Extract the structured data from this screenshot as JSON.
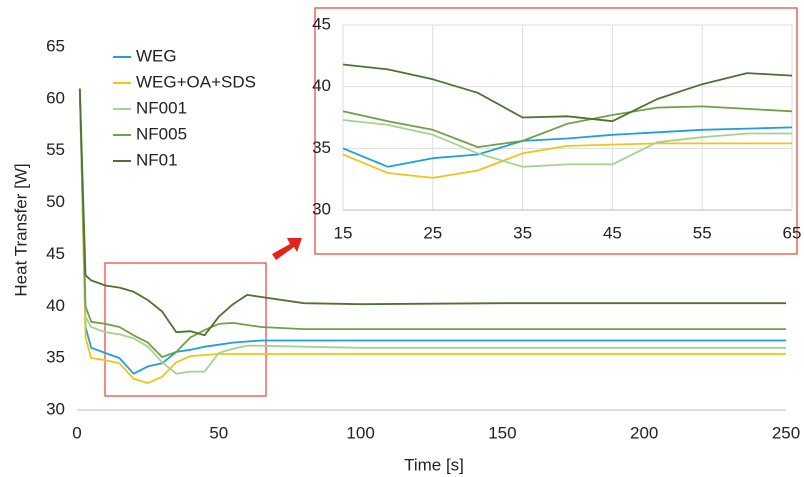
{
  "chart_data": [
    {
      "type": "line",
      "x_label": "Time [s]",
      "y_label": "Heat Transfer [W]",
      "x": [
        1,
        3,
        5,
        10,
        15,
        20,
        25,
        30,
        35,
        40,
        45,
        50,
        55,
        60,
        65,
        80,
        100,
        150,
        200,
        250
      ],
      "xlim": [
        0,
        250
      ],
      "xticks": [
        0,
        50,
        100,
        150,
        200,
        250
      ],
      "ylim": [
        30,
        65
      ],
      "yticks": [
        30,
        35,
        40,
        45,
        50,
        55,
        60,
        65
      ],
      "grid": false,
      "legend": "top-left",
      "series": [
        {
          "name": "WEG",
          "color": "#1f9fe0",
          "values": [
            61,
            38,
            36,
            35.5,
            35,
            33.5,
            34.2,
            34.5,
            35.6,
            35.8,
            36.1,
            36.3,
            36.5,
            36.6,
            36.7,
            36.7,
            36.7,
            36.7,
            36.7,
            36.7
          ]
        },
        {
          "name": "WEG+OA+SDS",
          "color": "#f5c21b",
          "values": [
            61,
            37,
            35,
            34.8,
            34.5,
            33,
            32.6,
            33.2,
            34.6,
            35.2,
            35.3,
            35.4,
            35.4,
            35.4,
            35.4,
            35.4,
            35.4,
            35.4,
            35.4,
            35.4
          ]
        },
        {
          "name": "NF001",
          "color": "#a9d18e",
          "values": [
            61,
            39,
            38,
            37.5,
            37.3,
            36.9,
            36.1,
            34.6,
            33.5,
            33.7,
            33.7,
            35.5,
            35.9,
            36.2,
            36.2,
            36.1,
            36,
            36,
            36,
            36
          ]
        },
        {
          "name": "NF005",
          "color": "#70a047",
          "values": [
            61,
            40,
            38.5,
            38.3,
            38,
            37.2,
            36.5,
            35.1,
            35.6,
            37,
            37.7,
            38.3,
            38.4,
            38.2,
            38,
            37.8,
            37.8,
            37.8,
            37.8,
            37.8
          ]
        },
        {
          "name": "NF01",
          "color": "#4e7330",
          "values": [
            61,
            43,
            42.5,
            42,
            41.8,
            41.4,
            40.6,
            39.5,
            37.5,
            37.6,
            37.2,
            39,
            40.2,
            41.1,
            40.9,
            40.3,
            40.2,
            40.3,
            40.3,
            40.3
          ]
        }
      ]
    },
    {
      "type": "line",
      "x": [
        15,
        20,
        25,
        30,
        35,
        40,
        45,
        50,
        55,
        60,
        65
      ],
      "xlim": [
        15,
        65
      ],
      "xticks": [
        15,
        25,
        35,
        45,
        55,
        65
      ],
      "ylim": [
        30,
        45
      ],
      "yticks": [
        30,
        35,
        40,
        45
      ],
      "grid": true,
      "series": [
        {
          "color": "#1f9fe0",
          "values": [
            35,
            33.5,
            34.2,
            34.5,
            35.6,
            35.8,
            36.1,
            36.3,
            36.5,
            36.6,
            36.7
          ]
        },
        {
          "color": "#f5c21b",
          "values": [
            34.5,
            33,
            32.6,
            33.2,
            34.6,
            35.2,
            35.3,
            35.4,
            35.4,
            35.4,
            35.4
          ]
        },
        {
          "color": "#a9d18e",
          "values": [
            37.3,
            36.9,
            36.1,
            34.6,
            33.5,
            33.7,
            33.7,
            35.5,
            35.9,
            36.2,
            36.2
          ]
        },
        {
          "color": "#70a047",
          "values": [
            38,
            37.2,
            36.5,
            35.1,
            35.6,
            37,
            37.7,
            38.3,
            38.4,
            38.2,
            38
          ]
        },
        {
          "color": "#4e7330",
          "values": [
            41.8,
            41.4,
            40.6,
            39.5,
            37.5,
            37.6,
            37.2,
            39,
            40.2,
            41.1,
            40.9
          ]
        }
      ]
    }
  ]
}
